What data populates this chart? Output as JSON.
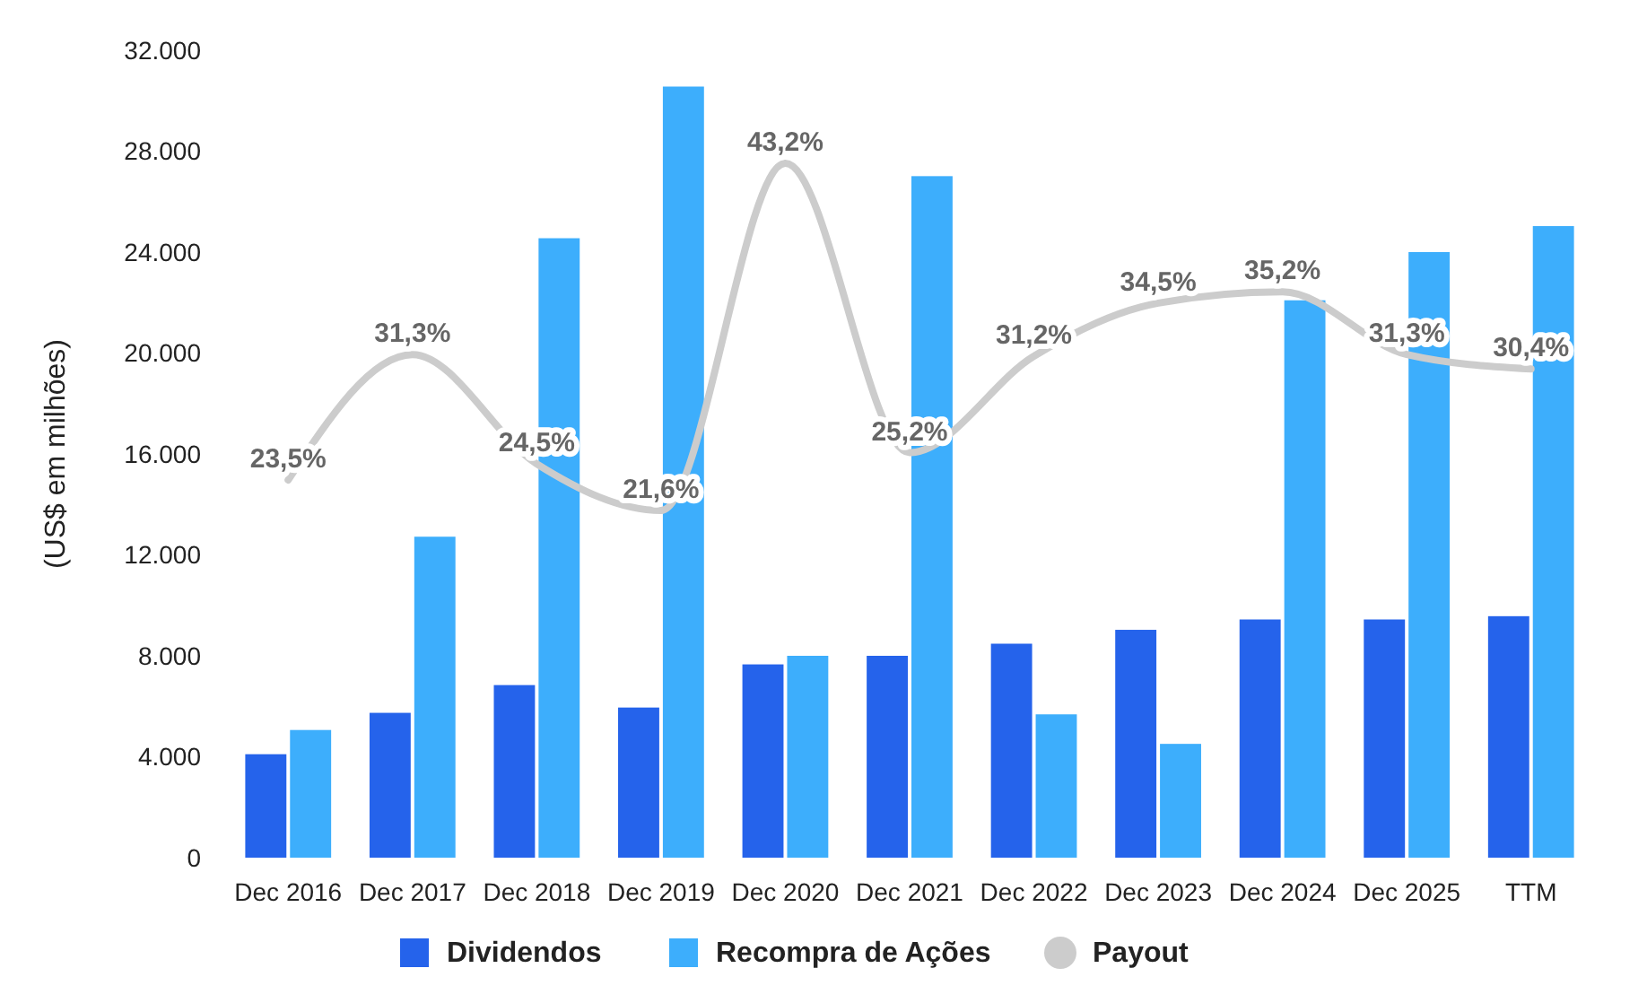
{
  "chart_data": {
    "type": "bar",
    "ylabel": "(US$ em milhões)",
    "categories": [
      "Dec 2016",
      "Dec 2017",
      "Dec 2018",
      "Dec 2019",
      "Dec 2020",
      "Dec 2021",
      "Dec 2022",
      "Dec 2023",
      "Dec 2024",
      "Dec 2025",
      "TTM"
    ],
    "ylim": [
      0,
      32000
    ],
    "yticks": [
      0,
      {
        "value": 4000,
        "label": "4.000"
      },
      {
        "value": 8000,
        "label": "8.000"
      },
      {
        "value": 12000,
        "label": "12.000"
      },
      {
        "value": 16000,
        "label": "16.000"
      },
      {
        "value": 20000,
        "label": "20.000"
      },
      {
        "value": 24000,
        "label": "24.000"
      },
      {
        "value": 28000,
        "label": "28.000"
      },
      {
        "value": 32000,
        "label": "32.000"
      }
    ],
    "tick_labels": "xy",
    "grid": false,
    "legend": "bottom",
    "series": [
      {
        "name": "Dividendos",
        "color": "#2563eb",
        "values": [
          4100,
          5740,
          6840,
          5950,
          7660,
          8000,
          8480,
          9030,
          9440,
          9440,
          9570
        ]
      },
      {
        "name": "Recompra de Ações",
        "color": "#3daefc",
        "values": [
          5060,
          12720,
          24550,
          30560,
          8000,
          27010,
          5680,
          4510,
          22090,
          24000,
          25030
        ]
      },
      {
        "name": "Payout",
        "type": "line",
        "axis": "y2",
        "color": "#cccccc",
        "values": [
          23.5,
          31.3,
          24.5,
          21.6,
          43.2,
          25.2,
          31.2,
          34.5,
          35.2,
          31.3,
          30.4
        ],
        "value_labels": [
          "23,5%",
          "31,3%",
          "24,5%",
          "21,6%",
          "43,2%",
          "25,2%",
          "31,2%",
          "34,5%",
          "35,2%",
          "31,3%",
          "30,4%"
        ]
      }
    ]
  }
}
